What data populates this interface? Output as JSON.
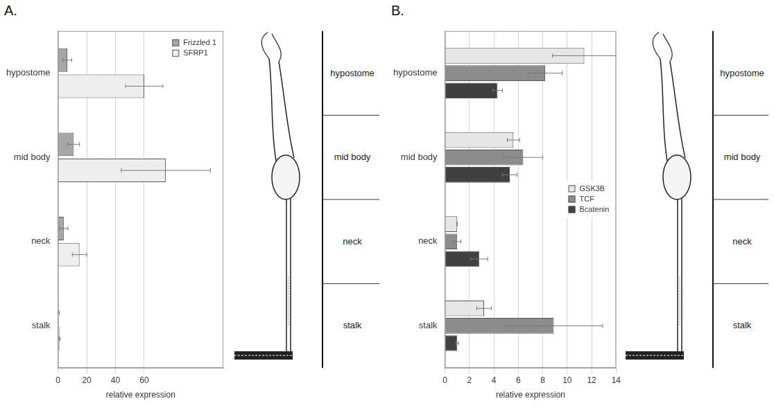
{
  "panel_labels": [
    "A.",
    "B."
  ],
  "chart_data": [
    {
      "type": "bar",
      "orientation": "horizontal",
      "categories": [
        "hypostome",
        "mid body",
        "neck",
        "stalk"
      ],
      "series": [
        {
          "name": "Frizzled 1",
          "color": "#a6a6a6",
          "values": [
            6.5,
            11,
            4,
            0.5
          ],
          "errors": [
            3,
            4,
            3,
            0.5
          ]
        },
        {
          "name": "SFRP1",
          "color": "#eeeeee",
          "values": [
            60,
            75,
            15,
            1
          ],
          "errors": [
            13,
            31,
            5,
            0.5
          ]
        }
      ],
      "x_label": "relative expression",
      "xlim": [
        0,
        115
      ],
      "xticks": [
        0,
        20,
        40,
        60
      ],
      "grid": true,
      "legend": "upper right"
    },
    {
      "type": "bar",
      "orientation": "horizontal",
      "categories": [
        "hypostome",
        "mid body",
        "neck",
        "stalk"
      ],
      "series": [
        {
          "name": "GSK3B",
          "color": "#e6e6e6",
          "values": [
            11.4,
            5.6,
            1.0,
            3.2
          ],
          "errors": [
            2.6,
            0.5,
            0,
            0.6
          ]
        },
        {
          "name": "TCF",
          "color": "#8c8c8c",
          "values": [
            8.2,
            6.4,
            1.0,
            8.9
          ],
          "errors": [
            1.4,
            1.6,
            0.3,
            4.0
          ]
        },
        {
          "name": "Bcatenin",
          "color": "#404040",
          "values": [
            4.3,
            5.3,
            2.8,
            1.0
          ],
          "errors": [
            0.4,
            0.6,
            0.7,
            0.1
          ]
        }
      ],
      "x_label": "relative expression",
      "xlim": [
        0,
        14
      ],
      "xticks": [
        0,
        2,
        4,
        6,
        8,
        10,
        12,
        14
      ],
      "grid": true,
      "legend": "right"
    }
  ],
  "diagram": {
    "regions": [
      "hypostome",
      "mid body",
      "neck",
      "stalk"
    ]
  }
}
